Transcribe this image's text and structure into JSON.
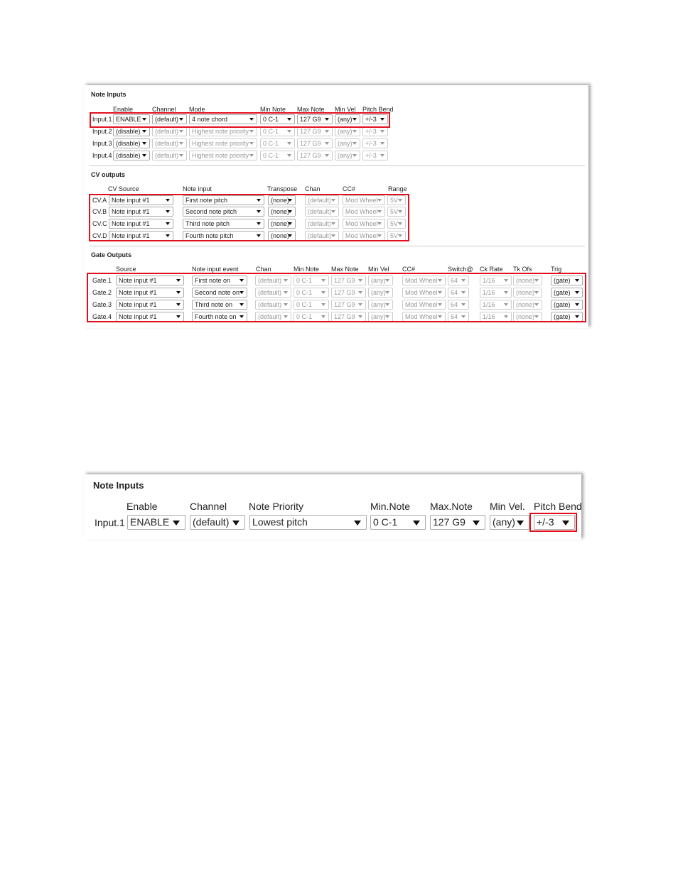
{
  "screenshot_1": {
    "sections": [
      {
        "title": "Note Inputs",
        "headers": [
          "Enable",
          "Channel",
          "Mode",
          "Min Note",
          "Max Note",
          "Min Vel",
          "Pitch Bend"
        ],
        "rows": [
          {
            "label": "Input.1",
            "cells": [
              "ENABLE",
              "(default)",
              "4 note chord",
              "0 C-1",
              "127 G9",
              "(any)",
              "+/-3"
            ]
          },
          {
            "label": "Input.2",
            "cells": [
              "(disable)",
              "(default)",
              "Highest note priority",
              "0 C-1",
              "127 G9",
              "(any)",
              "+/-3"
            ]
          },
          {
            "label": "Input.3",
            "cells": [
              "(disable)",
              "(default)",
              "Highest note priority",
              "0 C-1",
              "127 G9",
              "(any)",
              "+/-3"
            ]
          },
          {
            "label": "Input.4",
            "cells": [
              "(disable)",
              "(default)",
              "Highest note priority",
              "0 C-1",
              "127 G9",
              "(any)",
              "+/-3"
            ]
          }
        ]
      },
      {
        "title": "CV outputs",
        "headers": [
          "CV Source",
          "Note input",
          "Transpose",
          "Chan",
          "CC#",
          "Range"
        ],
        "rows": [
          {
            "label": "CV.A",
            "cells": [
              "Note input #1",
              "First note pitch",
              "(none)",
              "(default)",
              "Mod Wheel",
              "5V"
            ]
          },
          {
            "label": "CV.B",
            "cells": [
              "Note input #1",
              "Second note pitch",
              "(none)",
              "(default)",
              "Mod Wheel",
              "5V"
            ]
          },
          {
            "label": "CV.C",
            "cells": [
              "Note input #1",
              "Third note pitch",
              "(none)",
              "(default)",
              "Mod Wheel",
              "5V"
            ]
          },
          {
            "label": "CV.D",
            "cells": [
              "Note input #1",
              "Fourth note pitch",
              "(none)",
              "(default)",
              "Mod Wheel",
              "5V"
            ]
          }
        ]
      },
      {
        "title": "Gate Outputs",
        "headers": [
          "Source",
          "Note input event",
          "Chan",
          "Min Note",
          "Max Note",
          "Min Vel",
          "CC#",
          "Switch@",
          "Ck Rate",
          "Tk Ofs",
          "Trig"
        ],
        "rows": [
          {
            "label": "Gate.1",
            "cells": [
              "Note input #1",
              "First note on",
              "(default)",
              "0 C-1",
              "127 G9",
              "(any)",
              "Mod Wheel",
              "64",
              "1/16",
              "(none)",
              "(gate)"
            ]
          },
          {
            "label": "Gate.2",
            "cells": [
              "Note input #1",
              "Second note on",
              "(default)",
              "0 C-1",
              "127 G9",
              "(any)",
              "Mod Wheel",
              "64",
              "1/16",
              "(none)",
              "(gate)"
            ]
          },
          {
            "label": "Gate.3",
            "cells": [
              "Note input #1",
              "Third note on",
              "(default)",
              "0 C-1",
              "127 G9",
              "(any)",
              "Mod Wheel",
              "64",
              "1/16",
              "(none)",
              "(gate)"
            ]
          },
          {
            "label": "Gate.4",
            "cells": [
              "Note input #1",
              "Fourth note on",
              "(default)",
              "0 C-1",
              "127 G9",
              "(any)",
              "Mod Wheel",
              "64",
              "1/16",
              "(none)",
              "(gate)"
            ]
          }
        ]
      }
    ]
  },
  "screenshot_2": {
    "sections": [
      {
        "title": "Note Inputs",
        "headers": [
          "Enable",
          "Channel",
          "Note Priority",
          "Min.Note",
          "Max.Note",
          "Min Vel.",
          "Pitch Bend"
        ],
        "rows": [
          {
            "label": "Input.1",
            "cells": [
              "ENABLE",
              "(default)",
              "Lowest pitch",
              "0 C-1",
              "127 G9",
              "(any)",
              "+/-3"
            ]
          }
        ]
      }
    ]
  }
}
